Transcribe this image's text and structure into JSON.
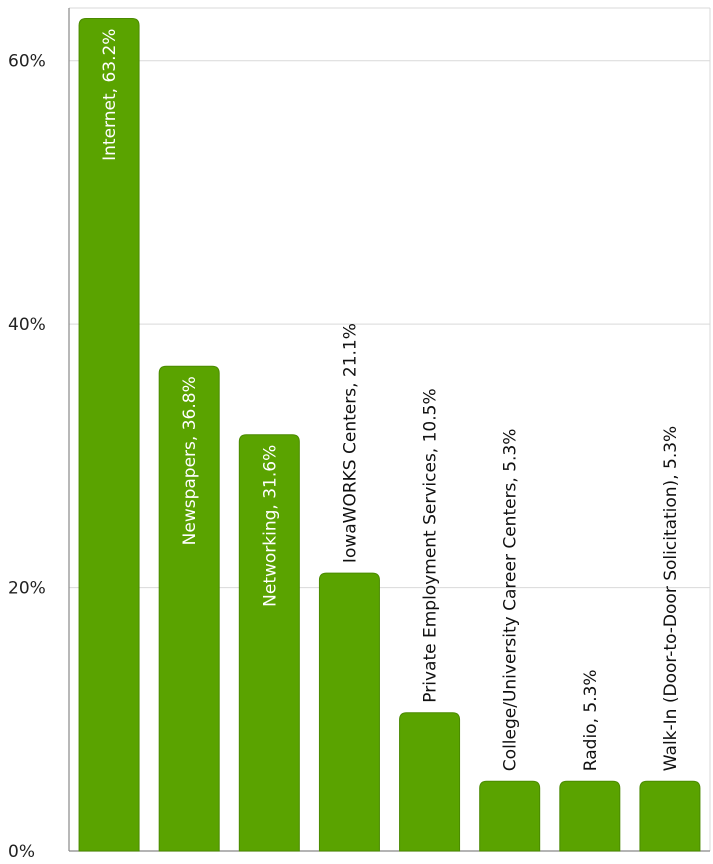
{
  "chart_data": {
    "type": "bar",
    "title": "",
    "xlabel": "",
    "ylabel": "",
    "ylim": [
      0,
      64
    ],
    "y_ticks": [
      0,
      20,
      40,
      60
    ],
    "y_tick_labels": [
      "0%",
      "20%",
      "40%",
      "60%"
    ],
    "grid": true,
    "legend": "none",
    "categories": [
      "Internet",
      "Newspapers",
      "Networking",
      "IowaWORKS Centers",
      "Private Employment Services",
      "College/University Career Centers",
      "Radio",
      "Walk-In (Door-to-Door Solicitation)"
    ],
    "values": [
      63.2,
      36.8,
      31.6,
      21.1,
      10.5,
      5.3,
      5.3,
      5.3
    ],
    "data_labels": [
      "Internet, 63.2%",
      "Newspapers, 36.8%",
      "Networking, 31.6%",
      "IowaWORKS Centers, 21.1%",
      "Private Employment Services, 10.5%",
      "College/University Career Centers, 5.3%",
      "Radio, 5.3%",
      "Walk-In (Door-to-Door Solicitation), 5.3%"
    ],
    "label_inside_bar": [
      true,
      true,
      true,
      false,
      false,
      false,
      false,
      false
    ],
    "colors": {
      "bar": "#5aa300",
      "bar_stroke": "#4a8a00",
      "label_inside": "#ffffff",
      "label_outside": "#111111",
      "grid": "#d9d9d9",
      "axis": "#888888"
    }
  }
}
